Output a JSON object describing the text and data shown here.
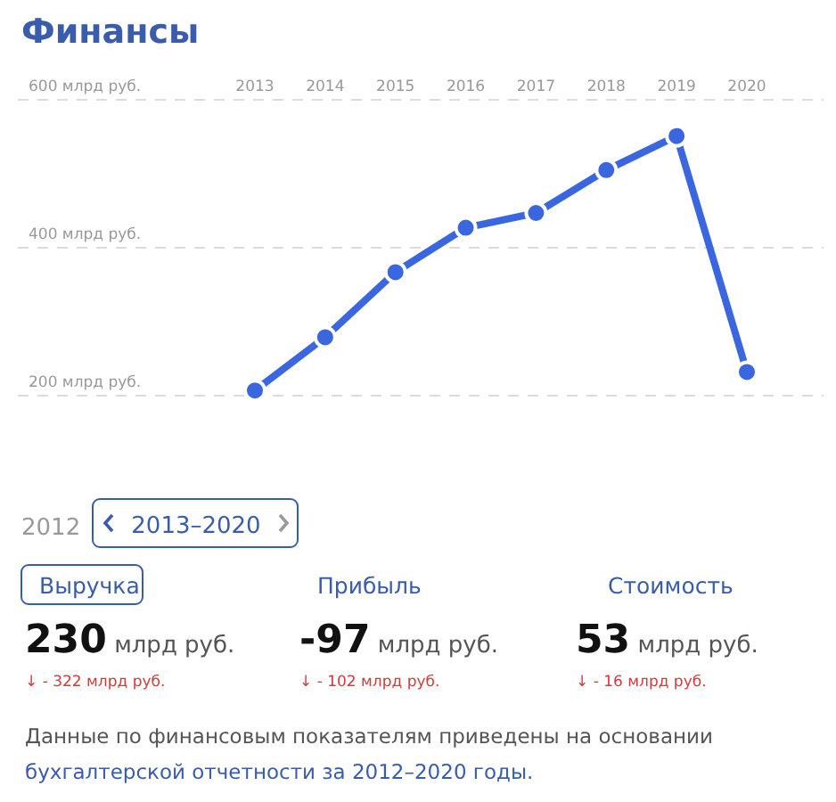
{
  "chart_data": {
    "type": "line",
    "title": "Финансы",
    "categories": [
      "2013",
      "2014",
      "2015",
      "2016",
      "2017",
      "2018",
      "2019",
      "2020"
    ],
    "series": [
      {
        "color": "#3a66e0",
        "values": [
          207,
          279,
          367,
          427,
          447,
          505,
          551,
          232
        ]
      }
    ],
    "ylim": [
      200,
      600
    ],
    "yticks": [
      {
        "value": 200,
        "label": "200 млрд руб."
      },
      {
        "value": 400,
        "label": "400 млрд руб."
      },
      {
        "value": 600,
        "label": "600 млрд руб."
      }
    ],
    "grid": "y",
    "marker": "circle",
    "line_style": "solid",
    "annotations": [
      "2012",
      "2013–2020",
      "Выручка",
      "Прибыль",
      "Стоимость",
      "230 млрд руб.",
      "-97 млрд руб.",
      "53 млрд руб.",
      "↓ - 322 млрд руб.",
      "↓ - 102 млрд руб.",
      "↓ - 16 млрд руб.",
      "Данные по финансовым показателям приведены на основании",
      "бухгалтерской отчетности за 2012–2020 годы."
    ]
  }
}
